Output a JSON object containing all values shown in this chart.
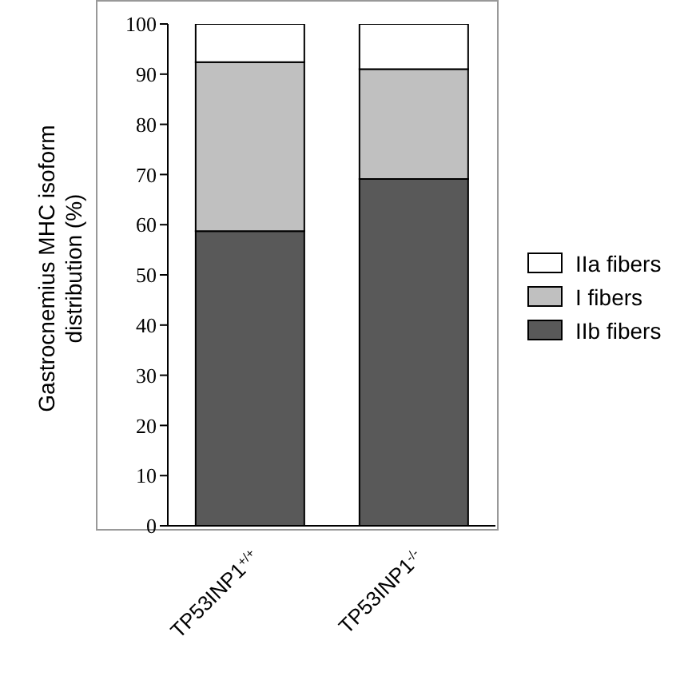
{
  "chart_data": {
    "type": "bar",
    "stacked": true,
    "ylabel": "Gastrocnemius MHC isoform distribution (%)",
    "categories": [
      "TP53INP1$^{+/+}$",
      "TP53INP1$^{-/-}$"
    ],
    "series": [
      {
        "name": "IIb fibers",
        "color": "#595959",
        "values": [
          58.7,
          69.1
        ]
      },
      {
        "name": "I fibers",
        "color": "#c0c0c0",
        "values": [
          33.7,
          21.9
        ]
      },
      {
        "name": "IIa fibers",
        "color": "#ffffff",
        "values": [
          7.6,
          9.0
        ]
      }
    ],
    "ylim": [
      0,
      100
    ],
    "yticks": [
      0,
      10,
      20,
      30,
      40,
      50,
      60,
      70,
      80,
      90,
      100
    ],
    "grid": false,
    "legend": "right"
  }
}
